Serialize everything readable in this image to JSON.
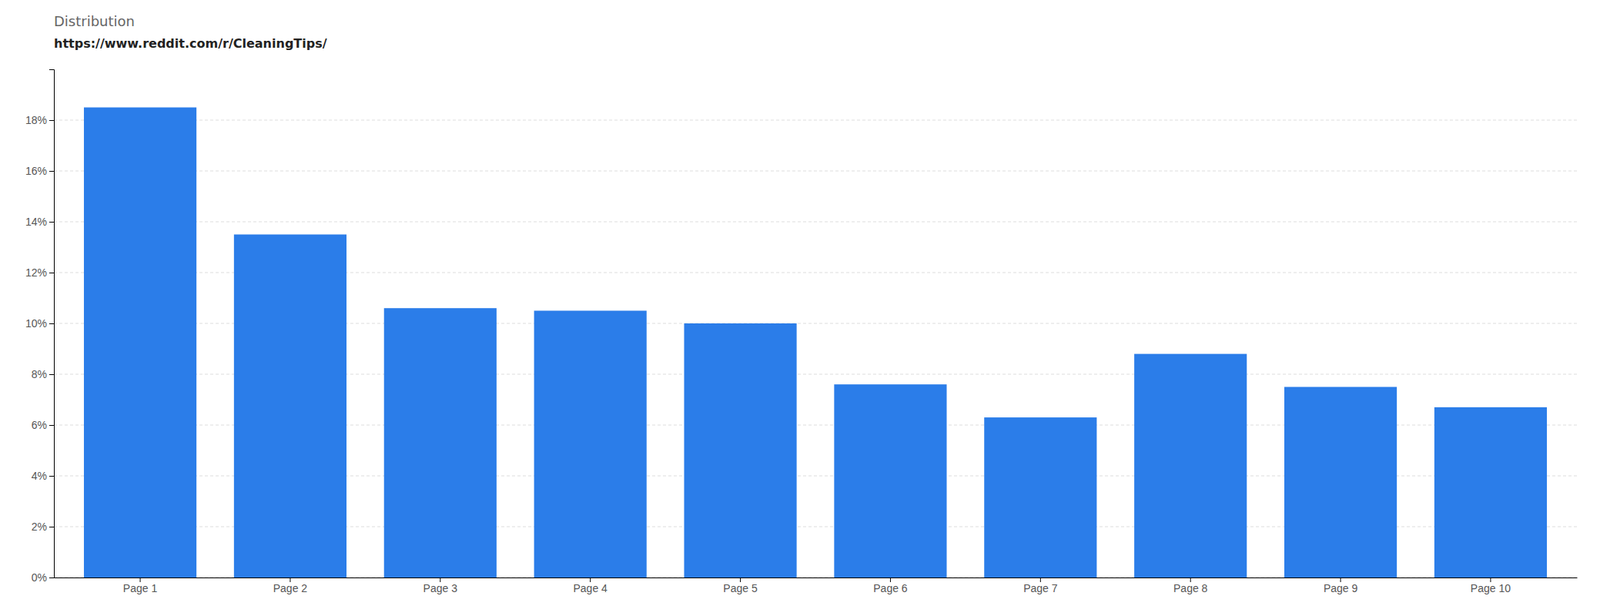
{
  "chart_data": {
    "type": "bar",
    "title": "Distribution",
    "subtitle": "https://www.reddit.com/r/CleaningTips/",
    "categories": [
      "Page 1",
      "Page 2",
      "Page 3",
      "Page 4",
      "Page 5",
      "Page 6",
      "Page 7",
      "Page 8",
      "Page 9",
      "Page 10"
    ],
    "values": [
      18.5,
      13.5,
      10.6,
      10.5,
      10.0,
      7.6,
      6.3,
      8.8,
      7.5,
      6.7
    ],
    "color": "#2b7de9",
    "ylim": [
      0,
      20
    ],
    "yticks": [
      {
        "value": 0,
        "label": "0%"
      },
      {
        "value": 2,
        "label": "2%"
      },
      {
        "value": 4,
        "label": "4%"
      },
      {
        "value": 6,
        "label": "6%"
      },
      {
        "value": 8,
        "label": "8%"
      },
      {
        "value": 10,
        "label": "10%"
      },
      {
        "value": 12,
        "label": "12%"
      },
      {
        "value": 14,
        "label": "14%"
      },
      {
        "value": 16,
        "label": "16%"
      },
      {
        "value": 18,
        "label": "18%"
      }
    ],
    "grid": true
  }
}
